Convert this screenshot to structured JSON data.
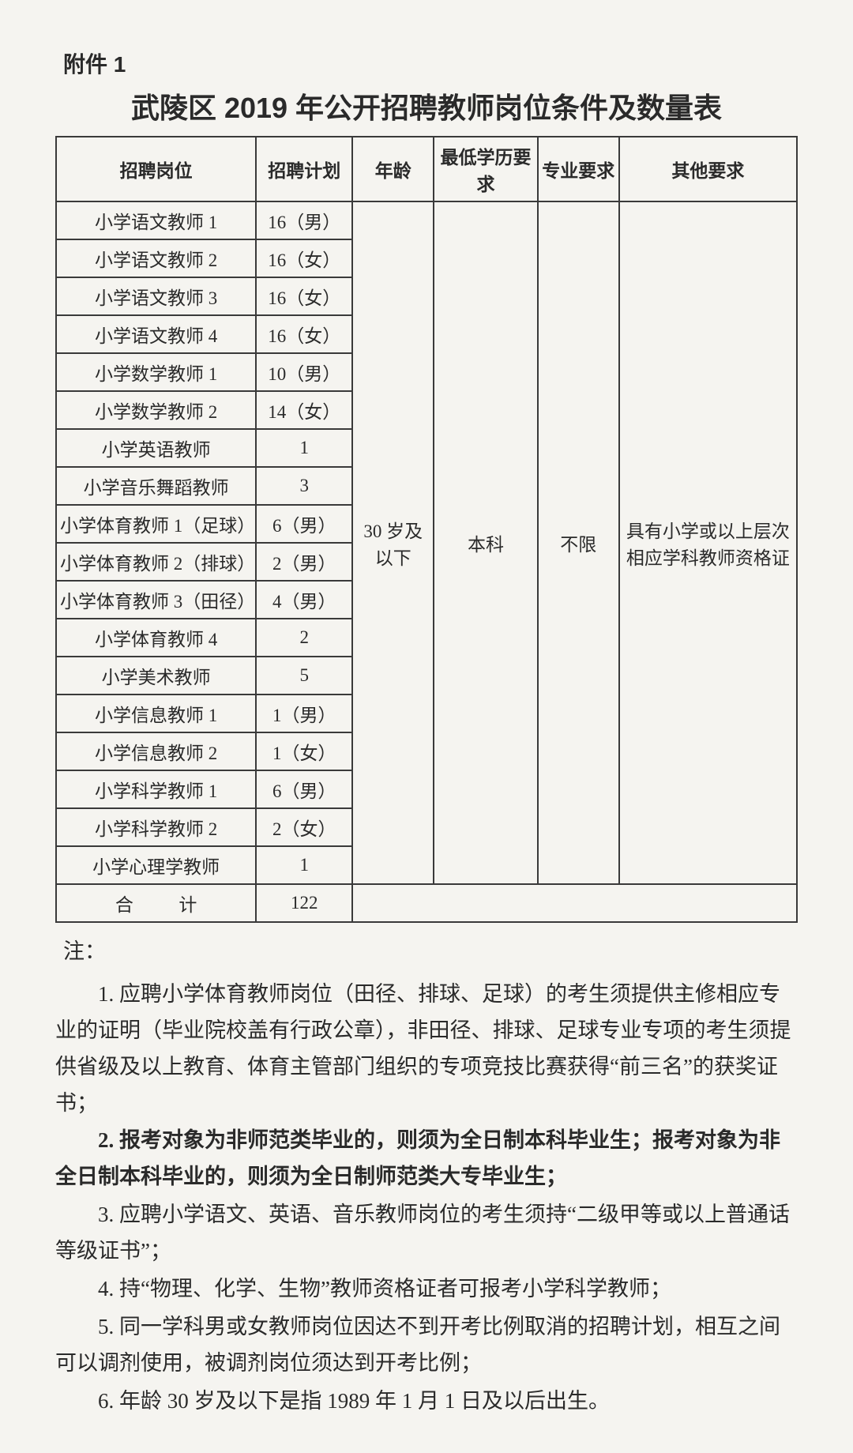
{
  "attachment_label": "附件 1",
  "doc_title": "武陵区 2019 年公开招聘教师岗位条件及数量表",
  "headers": {
    "position": "招聘岗位",
    "plan": "招聘计划",
    "age": "年龄",
    "edu": "最低学历要求",
    "major": "专业要求",
    "other": "其他要求"
  },
  "rows": [
    {
      "position": "小学语文教师 1",
      "plan": "16（男）"
    },
    {
      "position": "小学语文教师 2",
      "plan": "16（女）"
    },
    {
      "position": "小学语文教师 3",
      "plan": "16（女）"
    },
    {
      "position": "小学语文教师 4",
      "plan": "16（女）"
    },
    {
      "position": "小学数学教师 1",
      "plan": "10（男）"
    },
    {
      "position": "小学数学教师 2",
      "plan": "14（女）"
    },
    {
      "position": "小学英语教师",
      "plan": "1"
    },
    {
      "position": "小学音乐舞蹈教师",
      "plan": "3"
    },
    {
      "position": "小学体育教师 1（足球）",
      "plan": "6（男）"
    },
    {
      "position": "小学体育教师 2（排球）",
      "plan": "2（男）"
    },
    {
      "position": "小学体育教师 3（田径）",
      "plan": "4（男）"
    },
    {
      "position": "小学体育教师 4",
      "plan": "2"
    },
    {
      "position": "小学美术教师",
      "plan": "5"
    },
    {
      "position": "小学信息教师 1",
      "plan": "1（男）"
    },
    {
      "position": "小学信息教师 2",
      "plan": "1（女）"
    },
    {
      "position": "小学科学教师 1",
      "plan": "6（男）"
    },
    {
      "position": "小学科学教师 2",
      "plan": "2（女）"
    },
    {
      "position": "小学心理学教师",
      "plan": "1"
    }
  ],
  "merged": {
    "age": "30 岁及以下",
    "edu": "本科",
    "major": "不限",
    "other": "具有小学或以上层次相应学科教师资格证"
  },
  "total": {
    "label": "合计",
    "value": "122"
  },
  "notes_label": "注：",
  "notes": [
    {
      "text": "1. 应聘小学体育教师岗位（田径、排球、足球）的考生须提供主修相应专业的证明（毕业院校盖有行政公章），非田径、排球、足球专业专项的考生须提供省级及以上教育、体育主管部门组织的专项竞技比赛获得“前三名”的获奖证书；",
      "bold": false
    },
    {
      "text": "2. 报考对象为非师范类毕业的，则须为全日制本科毕业生；报考对象为非全日制本科毕业的，则须为全日制师范类大专毕业生；",
      "bold": true
    },
    {
      "text": "3. 应聘小学语文、英语、音乐教师岗位的考生须持“二级甲等或以上普通话等级证书”；",
      "bold": false
    },
    {
      "text": "4. 持“物理、化学、生物”教师资格证者可报考小学科学教师；",
      "bold": false
    },
    {
      "text": "5. 同一学科男或女教师岗位因达不到开考比例取消的招聘计划，相互之间可以调剂使用，被调剂岗位须达到开考比例；",
      "bold": false
    },
    {
      "text": "6. 年龄 30 岁及以下是指 1989 年 1 月 1 日及以后出生。",
      "bold": false
    }
  ],
  "style": {
    "background_color": "#f5f4f0",
    "text_color": "#2a2a2a",
    "border_color": "#3a3a3a",
    "title_fontsize": 36,
    "header_fontsize": 23,
    "cell_fontsize": 23,
    "notes_fontsize": 27,
    "row_count": 18
  }
}
